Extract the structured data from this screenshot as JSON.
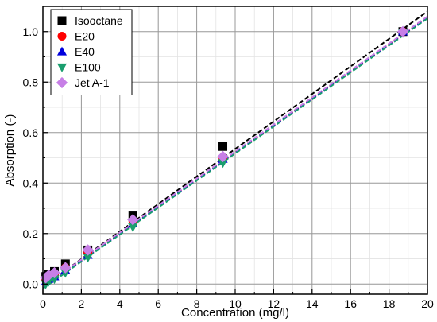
{
  "chart_data": {
    "type": "scatter",
    "title": "",
    "xlabel": "Concentration (mg/l)",
    "ylabel": "Absorption (-)",
    "xlim": [
      0,
      20
    ],
    "ylim": [
      -0.04,
      1.1
    ],
    "x_ticks": [
      0,
      2,
      4,
      6,
      8,
      10,
      12,
      14,
      16,
      18,
      20
    ],
    "y_ticks": [
      0.0,
      0.2,
      0.4,
      0.6,
      0.8,
      1.0
    ],
    "x_tick_labels": [
      "0",
      "2",
      "4",
      "6",
      "8",
      "10",
      "12",
      "14",
      "16",
      "18",
      "20"
    ],
    "y_tick_labels": [
      "0.0",
      "0.2",
      "0.4",
      "0.6",
      "0.8",
      "1.0"
    ],
    "grid": true,
    "legend_position": "top-left",
    "series": [
      {
        "name": "Isooctane",
        "marker": "square",
        "color": "#000000",
        "x": [
          0.15,
          0.3,
          0.6,
          1.17,
          2.34,
          4.68,
          9.36,
          18.72
        ],
        "y": [
          0.03,
          0.04,
          0.05,
          0.08,
          0.135,
          0.27,
          0.545,
          1.0
        ],
        "fit": {
          "slope": 0.0545,
          "intercept": -0.01,
          "color": "#000000"
        }
      },
      {
        "name": "E20",
        "marker": "circle",
        "color": "#ff0000",
        "x": [
          0.15,
          0.3,
          0.6,
          1.17,
          2.34,
          4.68,
          9.36,
          18.72
        ],
        "y": [
          0.02,
          0.03,
          0.04,
          0.065,
          0.125,
          0.25,
          0.5,
          1.0
        ],
        "fit": {
          "slope": 0.0535,
          "intercept": -0.013,
          "color": "#ff0000"
        }
      },
      {
        "name": "E40",
        "marker": "triangle-up",
        "color": "#0000dd",
        "x": [
          0.15,
          0.3,
          0.6,
          1.17,
          2.34,
          4.68,
          9.36,
          18.72
        ],
        "y": [
          0.01,
          0.02,
          0.03,
          0.055,
          0.115,
          0.24,
          0.495,
          1.0
        ],
        "fit": {
          "slope": 0.0535,
          "intercept": -0.015,
          "color": "#0000dd"
        }
      },
      {
        "name": "E100",
        "marker": "triangle-down",
        "color": "#1a9e6e",
        "x": [
          0.15,
          0.3,
          0.6,
          1.17,
          2.34,
          4.68,
          9.36,
          18.72
        ],
        "y": [
          0.0,
          0.01,
          0.02,
          0.045,
          0.105,
          0.225,
          0.48,
          0.995
        ],
        "fit": {
          "slope": 0.0535,
          "intercept": -0.018,
          "color": "#1a9e6e"
        }
      },
      {
        "name": "Jet A-1",
        "marker": "diamond",
        "color": "#c77fe6",
        "x": [
          0.15,
          0.3,
          0.6,
          1.17,
          2.34,
          4.68,
          9.36,
          18.72
        ],
        "y": [
          0.025,
          0.035,
          0.045,
          0.065,
          0.135,
          0.255,
          0.505,
          1.0
        ],
        "fit": {
          "slope": 0.0535,
          "intercept": -0.01,
          "color": "#c77fe6"
        }
      }
    ]
  }
}
